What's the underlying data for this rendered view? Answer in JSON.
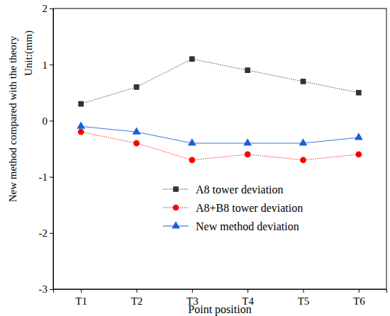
{
  "chart_data": {
    "type": "line",
    "xlabel": "Point position",
    "ylabel": [
      "New method compared with the theory",
      "Unit:(mm)"
    ],
    "categories": [
      "T1",
      "T2",
      "T3",
      "T4",
      "T5",
      "T6"
    ],
    "ylim": [
      -3,
      2
    ],
    "yticks": [
      -3,
      -2,
      -1,
      0,
      1,
      2
    ],
    "grid": false,
    "legend": "lower right",
    "series": [
      {
        "name": "A8 tower deviation",
        "color": "#333333",
        "marker": "square",
        "line_style": "dotted",
        "values": [
          0.3,
          0.6,
          1.1,
          0.9,
          0.7,
          0.5
        ]
      },
      {
        "name": "A8+B8 tower deviation",
        "color": "#ff0000",
        "marker": "circle",
        "line_style": "dotted",
        "values": [
          -0.2,
          -0.4,
          -0.7,
          -0.6,
          -0.7,
          -0.6
        ]
      },
      {
        "name": "New method deviation",
        "color": "#1a5fd9",
        "marker": "triangle",
        "line_style": "solid",
        "values": [
          -0.1,
          -0.2,
          -0.4,
          -0.4,
          -0.4,
          -0.3
        ]
      }
    ]
  }
}
